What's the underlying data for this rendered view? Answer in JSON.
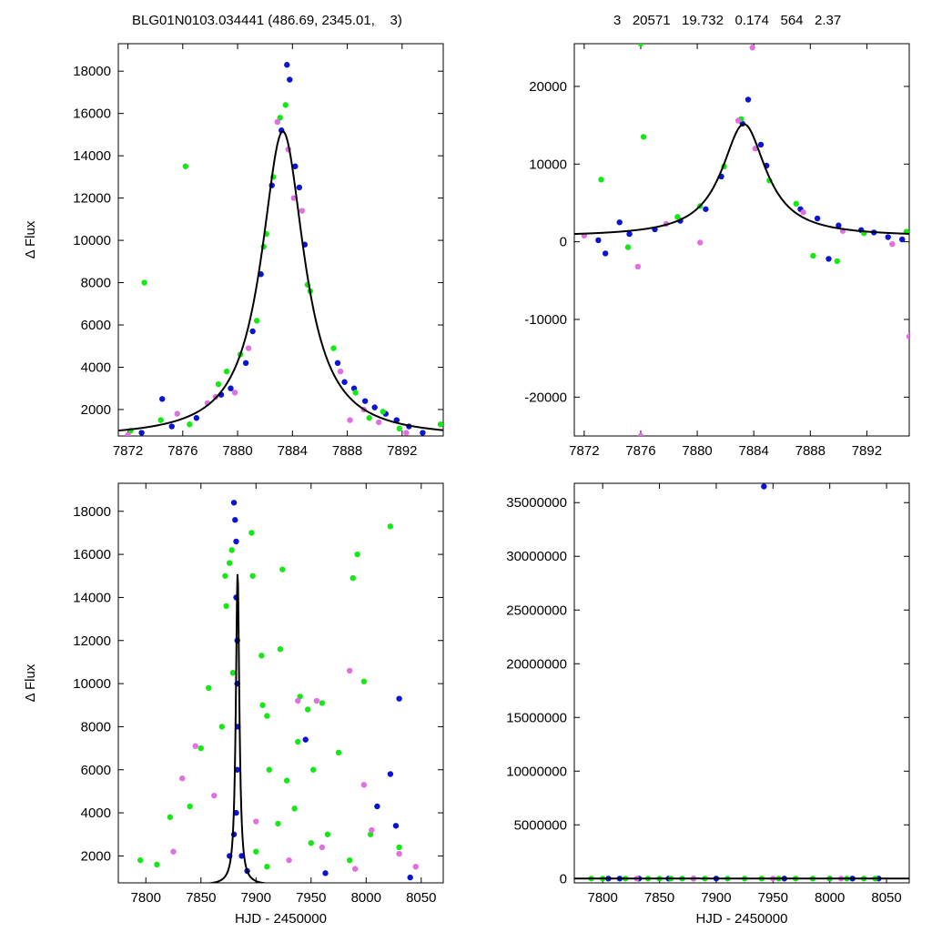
{
  "header": {
    "left": "BLG01N0103.034441 (486.69, 2345.01,    3)",
    "right": "3   20571   19.732   0.174   564   2.37"
  },
  "colors": {
    "blue": "#0a14d2",
    "green": "#16e816",
    "pink": "#e070e0",
    "model": "#000000"
  },
  "chart_data": [
    {
      "type": "scatter",
      "panel": "top-left",
      "title": "",
      "xlabel": "",
      "ylabel": "Δ Flux",
      "xlim": [
        7871.3,
        7895.0
      ],
      "ylim": [
        750,
        19300
      ],
      "xticks": [
        7872,
        7876,
        7880,
        7884,
        7888,
        7892
      ],
      "yticks": [
        2000,
        4000,
        6000,
        8000,
        10000,
        12000,
        14000,
        16000,
        18000
      ],
      "model": {
        "t0": 7883.3,
        "peak": 14500,
        "base": 650,
        "tau": 1.9
      },
      "series": [
        {
          "color": "blue",
          "points": [
            [
              7873,
              900
            ],
            [
              7874.5,
              2500
            ],
            [
              7875.2,
              1200
            ],
            [
              7877,
              1600
            ],
            [
              7878.8,
              2700
            ],
            [
              7879.5,
              3000
            ],
            [
              7880.6,
              4200
            ],
            [
              7881.1,
              5700
            ],
            [
              7881.7,
              8400
            ],
            [
              7882.5,
              12600
            ],
            [
              7883.2,
              15200
            ],
            [
              7883.6,
              18300
            ],
            [
              7883.8,
              17600
            ],
            [
              7884.2,
              13500
            ],
            [
              7884.5,
              12500
            ],
            [
              7884.9,
              9800
            ],
            [
              7887.3,
              4200
            ],
            [
              7887.8,
              3300
            ],
            [
              7888.5,
              3000
            ],
            [
              7889.3,
              2400
            ],
            [
              7890,
              2100
            ],
            [
              7890.8,
              1800
            ],
            [
              7891.6,
              1500
            ],
            [
              7892.5,
              1200
            ],
            [
              7893.5,
              900
            ]
          ]
        },
        {
          "color": "green",
          "points": [
            [
              7872.2,
              1000
            ],
            [
              7873.2,
              8000
            ],
            [
              7874.4,
              1500
            ],
            [
              7876.2,
              13500
            ],
            [
              7876.5,
              1300
            ],
            [
              7878.6,
              3200
            ],
            [
              7879.2,
              3800
            ],
            [
              7880.2,
              4600
            ],
            [
              7881.4,
              6200
            ],
            [
              7881.9,
              9700
            ],
            [
              7882.1,
              10300
            ],
            [
              7882.6,
              13000
            ],
            [
              7883.1,
              15800
            ],
            [
              7883.5,
              16400
            ],
            [
              7885.1,
              7900
            ],
            [
              7885.3,
              7600
            ],
            [
              7887,
              4900
            ],
            [
              7888.6,
              2800
            ],
            [
              7889.6,
              1600
            ],
            [
              7890.6,
              1900
            ],
            [
              7891.8,
              1100
            ],
            [
              7894.8,
              1300
            ]
          ]
        },
        {
          "color": "pink",
          "points": [
            [
              7872,
              800
            ],
            [
              7875.6,
              1800
            ],
            [
              7877.8,
              2300
            ],
            [
              7878.4,
              2600
            ],
            [
              7879.8,
              2800
            ],
            [
              7880.8,
              4900
            ],
            [
              7882.9,
              15600
            ],
            [
              7883.7,
              14300
            ],
            [
              7884.1,
              12000
            ],
            [
              7884.7,
              11400
            ],
            [
              7887.5,
              3800
            ],
            [
              7888.2,
              1500
            ],
            [
              7889.2,
              2000
            ],
            [
              7890.3,
              1400
            ],
            [
              7892.3,
              900
            ]
          ]
        }
      ]
    },
    {
      "type": "scatter",
      "panel": "top-right",
      "title": "",
      "xlabel": "",
      "ylabel": "",
      "xlim": [
        7871.3,
        7895.0
      ],
      "ylim": [
        -25000,
        25500
      ],
      "xticks": [
        7872,
        7876,
        7880,
        7884,
        7888,
        7892
      ],
      "yticks": [
        -20000,
        -10000,
        0,
        10000,
        20000
      ],
      "model": {
        "t0": 7883.3,
        "peak": 14500,
        "base": 650,
        "tau": 1.9
      },
      "series": [
        {
          "color": "blue",
          "points": [
            [
              7873,
              200
            ],
            [
              7873.5,
              -1500
            ],
            [
              7874.5,
              2500
            ],
            [
              7875.2,
              1000
            ],
            [
              7877,
              1600
            ],
            [
              7878.8,
              2700
            ],
            [
              7880.6,
              4200
            ],
            [
              7881.7,
              8400
            ],
            [
              7883.2,
              15200
            ],
            [
              7883.6,
              18300
            ],
            [
              7884.5,
              12500
            ],
            [
              7884.9,
              9800
            ],
            [
              7887.3,
              4200
            ],
            [
              7888.5,
              3000
            ],
            [
              7889.3,
              -2200
            ],
            [
              7890,
              2100
            ],
            [
              7891.6,
              1500
            ],
            [
              7892.5,
              1200
            ],
            [
              7893.5,
              600
            ],
            [
              7894.5,
              300
            ]
          ]
        },
        {
          "color": "green",
          "points": [
            [
              7873.2,
              8000
            ],
            [
              7875.1,
              -700
            ],
            [
              7876,
              25500
            ],
            [
              7876.2,
              13500
            ],
            [
              7878.6,
              3200
            ],
            [
              7880.2,
              4600
            ],
            [
              7881.9,
              9700
            ],
            [
              7883.1,
              15800
            ],
            [
              7885.1,
              7900
            ],
            [
              7887,
              4900
            ],
            [
              7888.2,
              -1800
            ],
            [
              7889.9,
              -2500
            ],
            [
              7891.8,
              1100
            ],
            [
              7894.8,
              1300
            ]
          ]
        },
        {
          "color": "pink",
          "points": [
            [
              7872,
              800
            ],
            [
              7875.8,
              -3200
            ],
            [
              7876,
              -25000
            ],
            [
              7877.8,
              2300
            ],
            [
              7880.2,
              -100
            ],
            [
              7882.9,
              15600
            ],
            [
              7884.1,
              12000
            ],
            [
              7887.5,
              3800
            ],
            [
              7883.9,
              25000
            ],
            [
              7890.3,
              1400
            ],
            [
              7893.8,
              -300
            ],
            [
              7895,
              -12200
            ]
          ]
        }
      ]
    },
    {
      "type": "scatter",
      "panel": "bottom-left",
      "title": "",
      "xlabel": "HJD - 2450000",
      "ylabel": "Δ Flux",
      "xlim": [
        7775,
        8070
      ],
      "ylim": [
        750,
        19300
      ],
      "xticks": [
        7800,
        7850,
        7900,
        7950,
        8000,
        8050
      ],
      "yticks": [
        2000,
        4000,
        6000,
        8000,
        10000,
        12000,
        14000,
        16000,
        18000
      ],
      "model": {
        "t0": 7883.3,
        "peak": 14500,
        "base": 650,
        "tau": 1.9
      },
      "series": [
        {
          "color": "blue",
          "points": [
            [
              7880,
              18400
            ],
            [
              7881,
              17600
            ],
            [
              7882,
              16600
            ],
            [
              7882,
              14000
            ],
            [
              7883,
              12000
            ],
            [
              7883,
              10000
            ],
            [
              7883.5,
              8000
            ],
            [
              7883,
              6000
            ],
            [
              7882,
              4000
            ],
            [
              7880,
              3000
            ],
            [
              7876,
              2000
            ],
            [
              7887,
              2000
            ],
            [
              7892,
              1300
            ],
            [
              7945,
              7400
            ],
            [
              7963,
              1200
            ],
            [
              8010,
              4300
            ],
            [
              8022,
              5800
            ],
            [
              8027,
              3400
            ],
            [
              8030,
              9300
            ],
            [
              8040,
              1000
            ]
          ]
        },
        {
          "color": "green",
          "points": [
            [
              7795,
              1800
            ],
            [
              7810,
              1600
            ],
            [
              7822,
              3800
            ],
            [
              7840,
              4300
            ],
            [
              7850,
              7000
            ],
            [
              7857,
              9800
            ],
            [
              7869,
              8000
            ],
            [
              7872,
              15000
            ],
            [
              7873,
              13600
            ],
            [
              7876,
              15600
            ],
            [
              7878,
              16200
            ],
            [
              7879,
              10500
            ],
            [
              7896,
              17000
            ],
            [
              7897,
              15000
            ],
            [
              7905,
              11300
            ],
            [
              7906,
              9000
            ],
            [
              7910,
              8500
            ],
            [
              7912,
              6000
            ],
            [
              7922,
              11600
            ],
            [
              7924,
              15300
            ],
            [
              7928,
              5500
            ],
            [
              7938,
              7300
            ],
            [
              7940,
              9400
            ],
            [
              7947,
              8800
            ],
            [
              7952,
              6000
            ],
            [
              7960,
              9100
            ],
            [
              7975,
              6800
            ],
            [
              7988,
              14900
            ],
            [
              7992,
              16000
            ],
            [
              7998,
              10100
            ],
            [
              8004,
              3000
            ],
            [
              8022,
              17300
            ],
            [
              8030,
              2400
            ],
            [
              7920,
              3500
            ],
            [
              7935,
              4200
            ],
            [
              7950,
              2600
            ],
            [
              7965,
              3000
            ],
            [
              7985,
              1800
            ],
            [
              7900,
              2200
            ],
            [
              7910,
              1500
            ]
          ]
        },
        {
          "color": "pink",
          "points": [
            [
              7825,
              2200
            ],
            [
              7833,
              5600
            ],
            [
              7845,
              7100
            ],
            [
              7862,
              4800
            ],
            [
              7900,
              3600
            ],
            [
              7938,
              9200
            ],
            [
              7955,
              9200
            ],
            [
              7985,
              10600
            ],
            [
              7998,
              5300
            ],
            [
              8005,
              3200
            ],
            [
              8030,
              2100
            ],
            [
              8045,
              1500
            ],
            [
              7930,
              1800
            ],
            [
              7960,
              2400
            ],
            [
              7990,
              1400
            ]
          ]
        }
      ]
    },
    {
      "type": "scatter",
      "panel": "bottom-right",
      "title": "",
      "xlabel": "HJD - 2450000",
      "ylabel": "",
      "xlim": [
        7775,
        8070
      ],
      "ylim": [
        -400000,
        36800000
      ],
      "xticks": [
        7800,
        7850,
        7900,
        7950,
        8000,
        8050
      ],
      "yticks": [
        0,
        5000000,
        10000000,
        15000000,
        20000000,
        25000000,
        30000000,
        35000000
      ],
      "model": {
        "t0": 7883.3,
        "peak": 14500,
        "base": 650,
        "tau": 1.9
      },
      "series": [
        {
          "color": "blue",
          "points": [
            [
              7805,
              0
            ],
            [
              7815,
              0
            ],
            [
              7832,
              0
            ],
            [
              7858,
              0
            ],
            [
              7880,
              0
            ],
            [
              7900,
              0
            ],
            [
              7942,
              36500000
            ],
            [
              7960,
              0
            ],
            [
              8000,
              0
            ],
            [
              8020,
              0
            ],
            [
              8043,
              0
            ]
          ]
        },
        {
          "color": "green",
          "points": [
            [
              7790,
              0
            ],
            [
              7800,
              0
            ],
            [
              7820,
              0
            ],
            [
              7840,
              0
            ],
            [
              7850,
              0
            ],
            [
              7860,
              0
            ],
            [
              7870,
              0
            ],
            [
              7890,
              0
            ],
            [
              7910,
              0
            ],
            [
              7925,
              0
            ],
            [
              7940,
              0
            ],
            [
              7955,
              0
            ],
            [
              7970,
              0
            ],
            [
              7985,
              0
            ],
            [
              8000,
              0
            ],
            [
              8015,
              0
            ],
            [
              8030,
              0
            ],
            [
              8040,
              0
            ]
          ]
        },
        {
          "color": "pink",
          "points": [
            [
              7830,
              0
            ],
            [
              7880,
              0
            ],
            [
              7950,
              0
            ],
            [
              8010,
              0
            ]
          ]
        }
      ]
    }
  ]
}
